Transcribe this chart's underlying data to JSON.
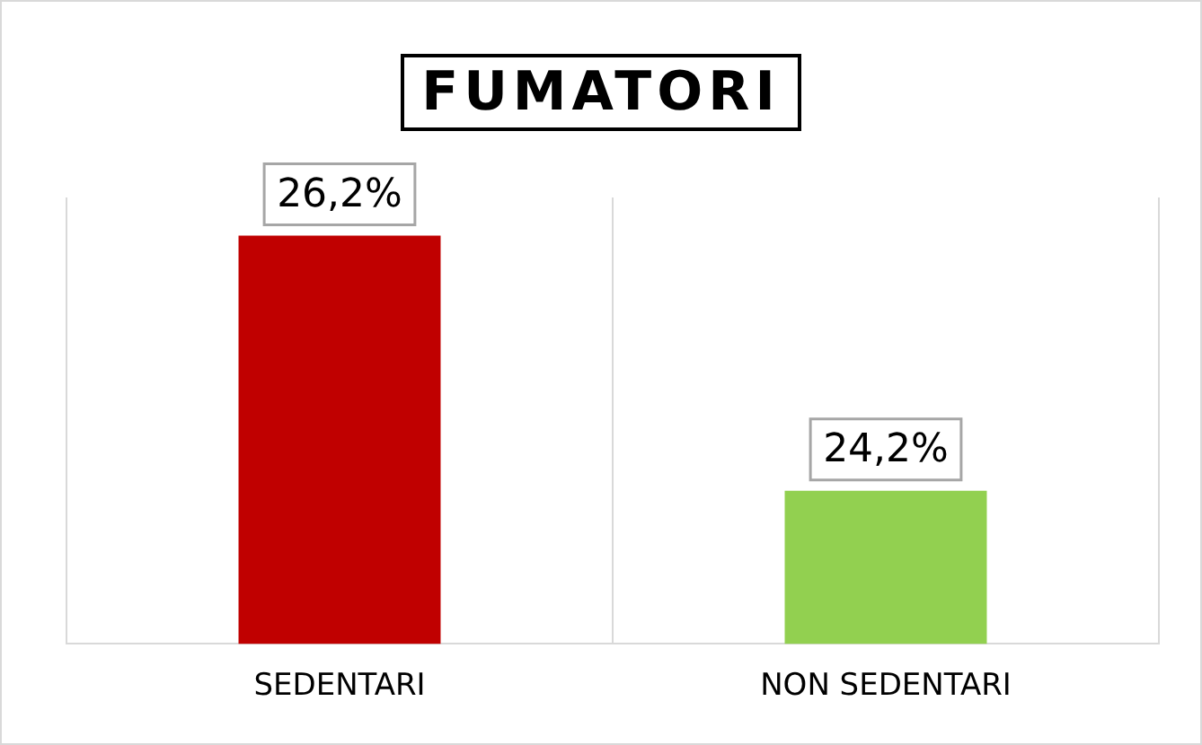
{
  "chart_data": {
    "type": "bar",
    "title": "FUMATORI",
    "categories": [
      "SEDENTARI",
      "NON SEDENTARI"
    ],
    "values": [
      26.2,
      24.2
    ],
    "colors": [
      "#c00000",
      "#92d050"
    ],
    "value_labels": [
      "26,2%",
      "24,2%"
    ],
    "ylim": [
      23,
      26.5
    ],
    "grid": "x",
    "legend": false
  }
}
